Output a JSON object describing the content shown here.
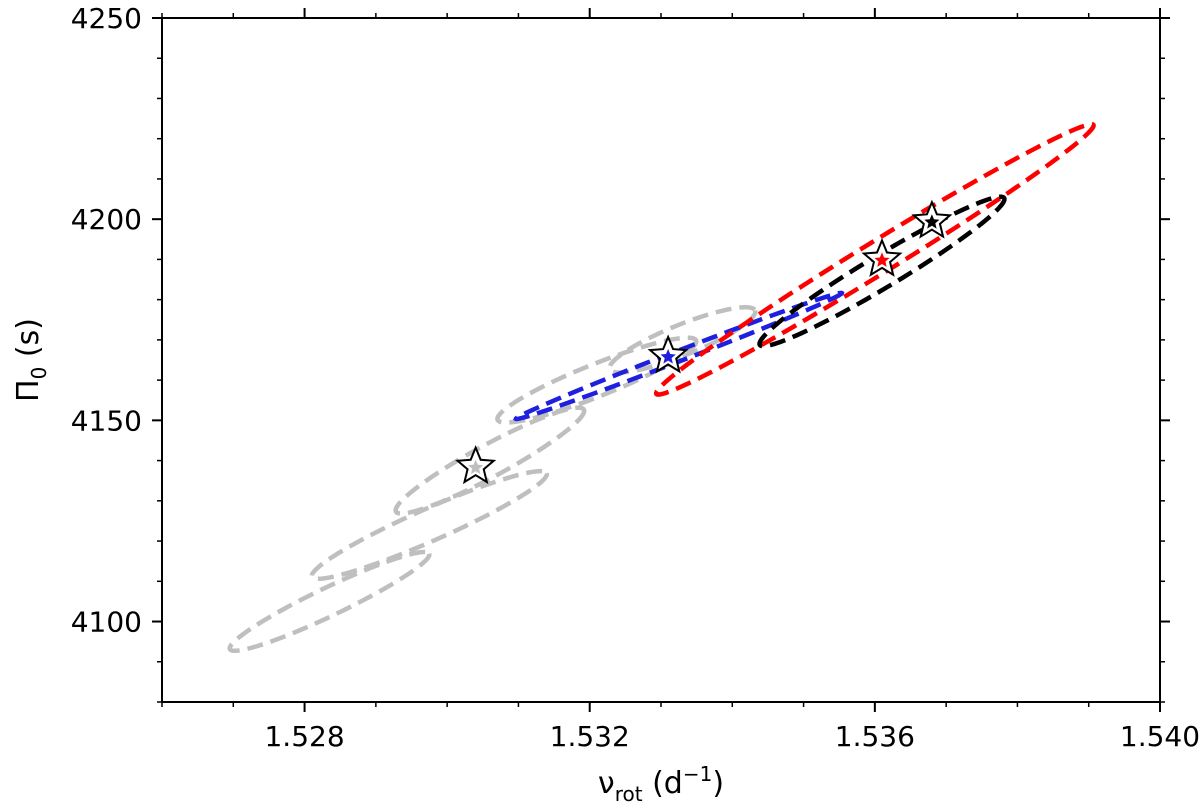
{
  "chart_data": {
    "type": "scatter",
    "title": "",
    "xlabel": {
      "base": "ν",
      "sub": "rot",
      "rest": " (d",
      "sup": "−1",
      "close": ")"
    },
    "ylabel": {
      "base": "Π",
      "sub": "0",
      "rest": " (s)"
    },
    "xlim": [
      1.526,
      1.54
    ],
    "ylim": [
      4080,
      4250
    ],
    "xticks": [
      1.528,
      1.532,
      1.536,
      1.54
    ],
    "xtick_labels": [
      "1.528",
      "1.532",
      "1.536",
      "1.540"
    ],
    "yticks": [
      4100,
      4150,
      4200,
      4250
    ],
    "ytick_labels": [
      "4100",
      "4150",
      "4200",
      "4250"
    ],
    "x_minor_step": 0.001,
    "y_minor_step": 10,
    "grid": false,
    "legend": "none",
    "series": [
      {
        "color": "#bfbfbf",
        "marker": "star",
        "point": {
          "x": 1.5304,
          "y": 4138.5
        },
        "ellipses": [
          {
            "cx": 1.52835,
            "cy": 4105,
            "rx": 0.00155,
            "ry": 3.5,
            "angle": 25.6
          },
          {
            "cx": 1.52975,
            "cy": 4124,
            "rx": 0.0018,
            "ry": 4,
            "angle": 23.8
          },
          {
            "cx": 1.5306,
            "cy": 4140,
            "rx": 0.0015,
            "ry": 4,
            "angle": 28.5
          },
          {
            "cx": 1.5321,
            "cy": 4160,
            "rx": 0.0015,
            "ry": 4,
            "angle": 21.8
          },
          {
            "cx": 1.5333,
            "cy": 4170,
            "rx": 0.0011,
            "ry": 3.8,
            "angle": 22
          }
        ]
      },
      {
        "color": "#1f1fe0",
        "marker": "star",
        "point": {
          "x": 1.5331,
          "y": 4166
        },
        "ellipses": [
          {
            "cx": 1.53325,
            "cy": 4166,
            "rx": 0.00245,
            "ry": 1.3,
            "angle": 21.1
          }
        ]
      },
      {
        "color": "#ff0000",
        "marker": "star",
        "point": {
          "x": 1.5361,
          "y": 4190
        },
        "ellipses": [
          {
            "cx": 1.536,
            "cy": 4190,
            "rx": 0.0036,
            "ry": 4,
            "angle": 31.6
          }
        ]
      },
      {
        "color": "#000000",
        "marker": "star",
        "point": {
          "x": 1.5368,
          "y": 4199.5
        },
        "ellipses": [
          {
            "cx": 1.5361,
            "cy": 4187,
            "rx": 0.002,
            "ry": 4,
            "angle": 31
          }
        ]
      }
    ]
  }
}
